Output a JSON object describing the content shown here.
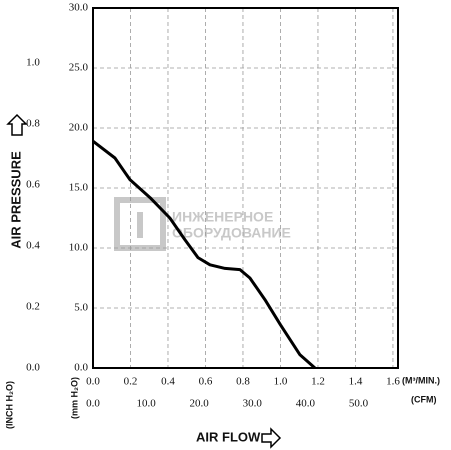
{
  "chart_data": {
    "type": "line",
    "y_label": "AIR PRESSURE",
    "x_label": "AIR FLOW",
    "x_unit_label": "(M³/MIN.)",
    "x2_unit_label": "(CFM)",
    "y_unit_label": "(mm H₂O)",
    "y2_unit_label": "(INCH H₂O)",
    "watermark": [
      "ИНЖЕНЕРНОЕ",
      "ОБОРУДОВАНИЕ"
    ],
    "grid": true,
    "color": "#000000",
    "x": [
      0,
      0.117,
      0.197,
      0.304,
      0.41,
      0.49,
      0.56,
      0.624,
      0.704,
      0.784,
      0.837,
      0.917,
      1.0,
      1.104,
      1.184
    ],
    "series": [
      {
        "color": "#000000",
        "values": [
          18.9,
          17.5,
          15.7,
          14.2,
          12.5,
          10.7,
          9.2,
          8.6,
          8.3,
          8.2,
          7.5,
          5.7,
          3.6,
          1.1,
          0
        ]
      }
    ],
    "xlim": [
      0,
      1.627
    ],
    "xticks": [
      {
        "value": 0,
        "label": "0.0"
      },
      {
        "value": 0.2,
        "label": "0.2"
      },
      {
        "value": 0.4,
        "label": "0.4"
      },
      {
        "value": 0.6,
        "label": "0.6"
      },
      {
        "value": 0.8,
        "label": "0.8"
      },
      {
        "value": 1.0,
        "label": "1.0"
      },
      {
        "value": 1.2,
        "label": "1.2"
      },
      {
        "value": 1.4,
        "label": "1.4"
      },
      {
        "value": 1.6,
        "label": "1.6"
      }
    ],
    "x2lim": [
      0,
      57.45
    ],
    "x2ticks": [
      {
        "value": 0,
        "label": "0.0"
      },
      {
        "value": 10,
        "label": "10.0"
      },
      {
        "value": 20,
        "label": "20.0"
      },
      {
        "value": 30,
        "label": "30.0"
      },
      {
        "value": 40,
        "label": "40.0"
      },
      {
        "value": 50,
        "label": "50.0"
      }
    ],
    "ylim": [
      0,
      30
    ],
    "yticks": [
      {
        "value": 0,
        "label": "0.0"
      },
      {
        "value": 5,
        "label": "5.0"
      },
      {
        "value": 10,
        "label": "10.0"
      },
      {
        "value": 15,
        "label": "15.0"
      },
      {
        "value": 20,
        "label": "20.0"
      },
      {
        "value": 25,
        "label": "25.0"
      },
      {
        "value": 30,
        "label": "30.0"
      }
    ],
    "y2lim": [
      0,
      1.181
    ],
    "y2ticks": [
      {
        "value": 0,
        "label": "0.0"
      },
      {
        "value": 0.2,
        "label": "0.2"
      },
      {
        "value": 0.4,
        "label": "0.4"
      },
      {
        "value": 0.6,
        "label": "0.6"
      },
      {
        "value": 0.8,
        "label": "0.8"
      },
      {
        "value": 1.0,
        "label": "1.0"
      }
    ]
  }
}
